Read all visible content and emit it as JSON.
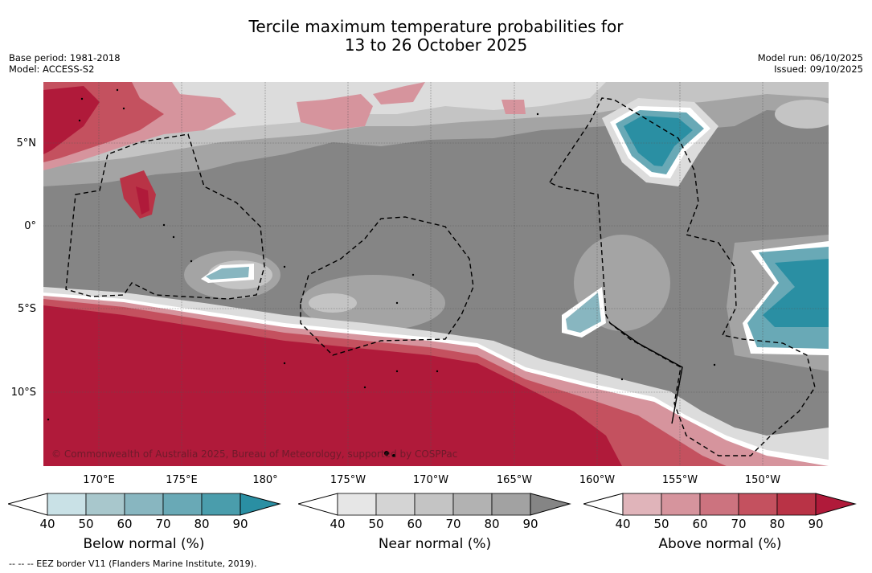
{
  "title": {
    "line1": "Tercile maximum temperature probabilities for",
    "line2": "13 to 26 October 2025"
  },
  "meta_left": {
    "base_period": "Base period: 1981-2018",
    "model": "Model: ACCESS-S2"
  },
  "meta_right": {
    "model_run": "Model run: 06/10/2025",
    "issued": "Issued: 09/10/2025"
  },
  "lat_labels": [
    "5°N",
    "0°",
    "5°S",
    "10°S"
  ],
  "lon_labels": [
    "170°E",
    "175°E",
    "180°",
    "175°W",
    "170°W",
    "165°W",
    "160°W",
    "155°W",
    "150°W"
  ],
  "copyright": "© Commonwealth of Australia 2025, Bureau of Meteorology, supported by COSPPac",
  "colorbars": {
    "below": {
      "label": "Below normal (%)",
      "ticks": [
        "40",
        "50",
        "60",
        "70",
        "80",
        "90"
      ],
      "colors": [
        "#c9e1e6",
        "#a8c7cc",
        "#88b6c0",
        "#69a9b6",
        "#4a9dac",
        "#2a8fa3"
      ]
    },
    "near": {
      "label": "Near normal (%)",
      "ticks": [
        "40",
        "50",
        "60",
        "70",
        "80",
        "90"
      ],
      "colors": [
        "#e6e6e6",
        "#d4d4d4",
        "#c4c4c4",
        "#b2b2b2",
        "#a2a2a2",
        "#858585"
      ]
    },
    "above": {
      "label": "Above normal (%)",
      "ticks": [
        "40",
        "50",
        "60",
        "70",
        "80",
        "90"
      ],
      "colors": [
        "#e0b4ba",
        "#d6949d",
        "#cc737f",
        "#c4515f",
        "#b93346",
        "#b01a3a"
      ]
    }
  },
  "footer": "--  --  -- EEZ border V11 (Flanders Marine Institute, 2019)."
}
